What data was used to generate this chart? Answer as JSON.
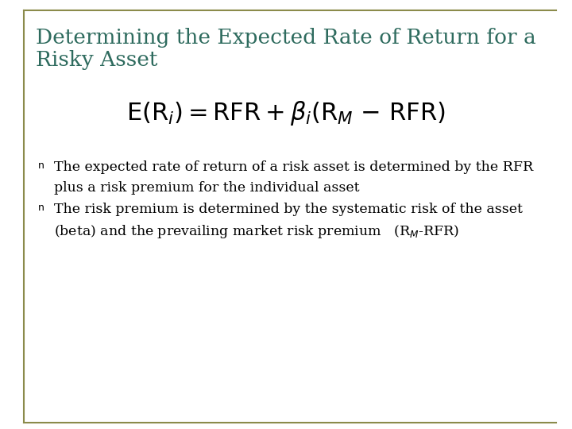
{
  "title_line1": "Determining the Expected Rate of Return for a",
  "title_line2": "Risky Asset",
  "title_color": "#2E6B5E",
  "background_color": "#FFFFFF",
  "border_color": "#8B8B4B",
  "text_color": "#000000",
  "font_size_title": 19,
  "font_size_formula": 22,
  "font_size_bullet": 12.5,
  "bullet1_line1": "The expected rate of return of a risk asset is determined by the RFR",
  "bullet1_line2": "plus a risk premium for the individual asset",
  "bullet2_line1": "The risk premium is determined by the systematic risk of the asset",
  "bullet2_line2": "(beta) and the prevailing market risk premium   (R$_{M}$-RFR)"
}
